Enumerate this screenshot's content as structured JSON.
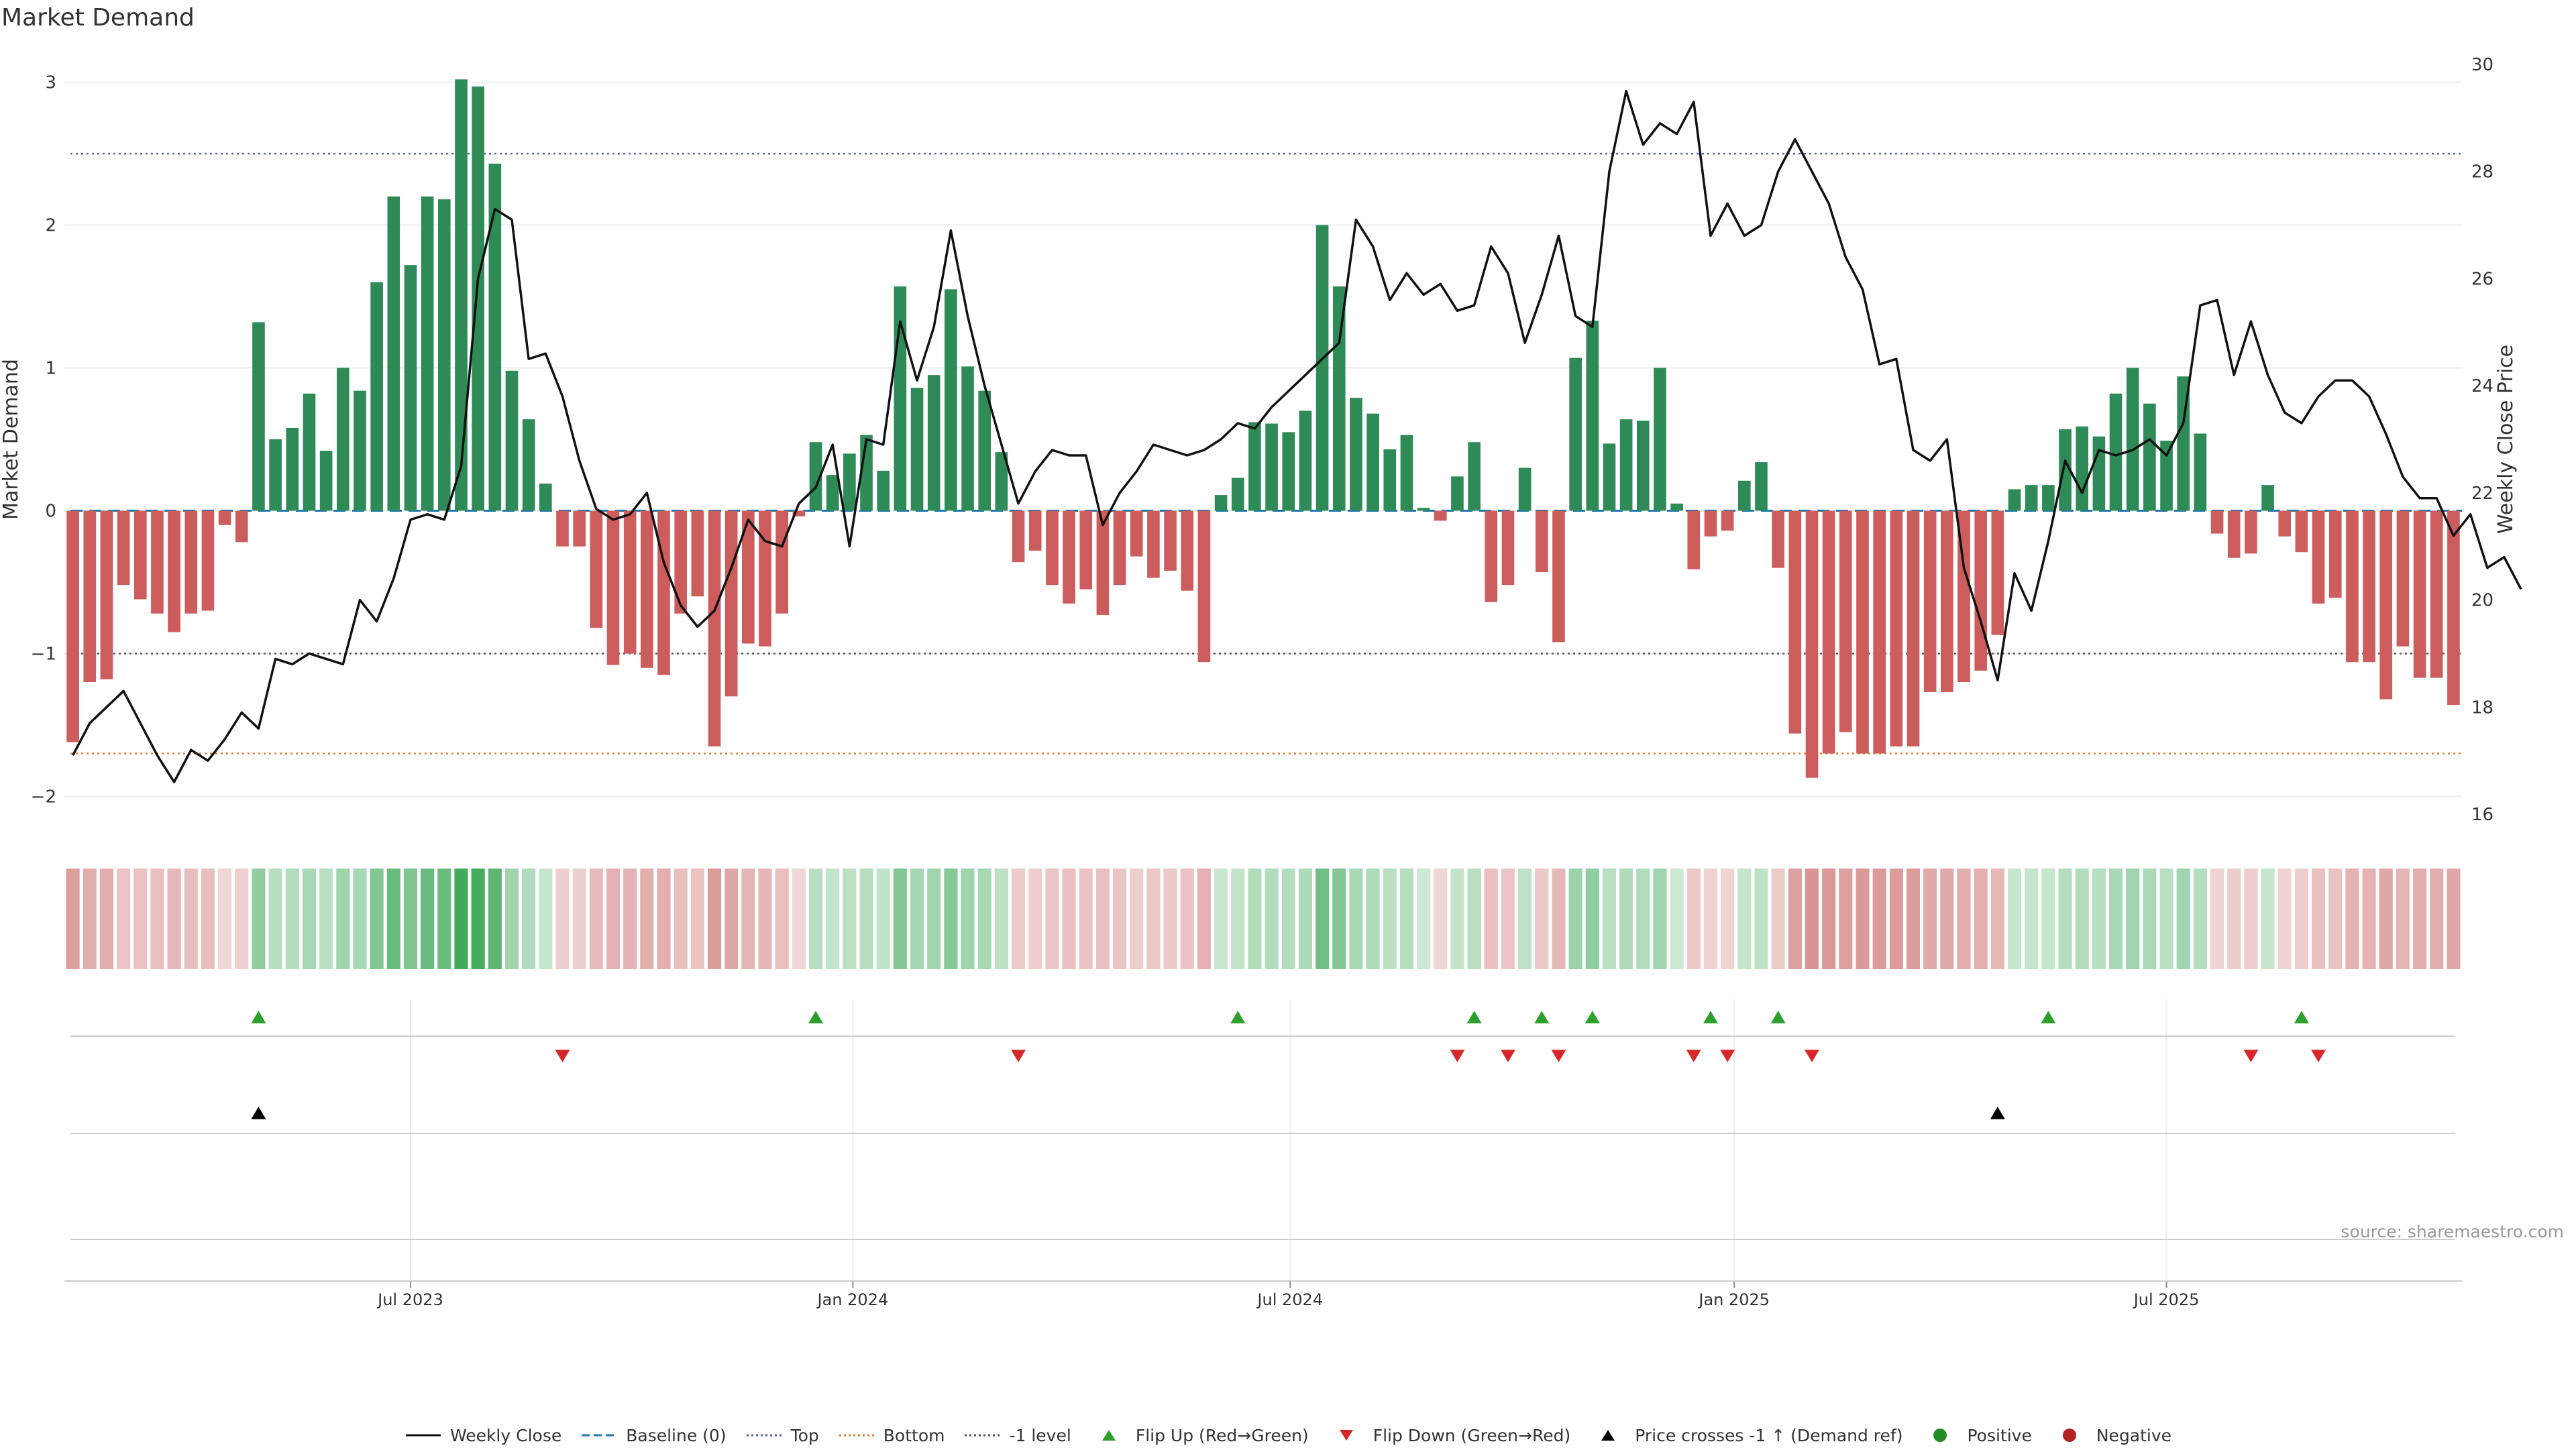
{
  "title": "Market Demand",
  "source": "source: sharemaestro.com",
  "colors": {
    "positive_bar": "#2e8b57",
    "negative_bar": "#cd5c5c",
    "line": "#111111",
    "baseline": "#1f77b4",
    "top": "#5b5bb0",
    "bottom": "#e08030",
    "minus1": "#555555",
    "flip_up": "#2ca02c",
    "flip_down": "#d62728",
    "price_cross": "#000000",
    "positive_dot": "#228b22",
    "negative_dot": "#b22222"
  },
  "legend": [
    {
      "label": "Weekly Close",
      "icon": "line-solid",
      "color": "#111111"
    },
    {
      "label": "Baseline (0)",
      "icon": "line-dash",
      "color": "#1f77b4"
    },
    {
      "label": "Top",
      "icon": "line-dot",
      "color": "#5b5bb0"
    },
    {
      "label": "Bottom",
      "icon": "line-dot",
      "color": "#e08030"
    },
    {
      "label": "-1 level",
      "icon": "line-dot",
      "color": "#555555"
    },
    {
      "label": "Flip Up (Red→Green)",
      "icon": "triangle-up",
      "color": "#2ca02c"
    },
    {
      "label": "Flip Down (Green→Red)",
      "icon": "triangle-down",
      "color": "#d62728"
    },
    {
      "label": "Price crosses -1 ↑ (Demand ref)",
      "icon": "triangle-up",
      "color": "#000000"
    },
    {
      "label": "Positive",
      "icon": "circle",
      "color": "#228b22"
    },
    {
      "label": "Negative",
      "icon": "circle",
      "color": "#b22222"
    }
  ],
  "chart_data": {
    "type": "bar",
    "title": "Market Demand",
    "ylabel": "Market Demand",
    "y2label": "Weekly Close Price",
    "ylim": [
      -2.2,
      3.2
    ],
    "y2lim": [
      15.8,
      30.2
    ],
    "yticks": [
      -2,
      -1,
      0,
      1,
      2,
      3
    ],
    "yticklabels": [
      "−2",
      "−1",
      "0",
      "1",
      "2",
      "3"
    ],
    "y2ticks": [
      16,
      18,
      20,
      22,
      24,
      26,
      28,
      30
    ],
    "y2ticklabels": [
      "16",
      "18",
      "20",
      "22",
      "24",
      "26",
      "28",
      "30"
    ],
    "x_date_ticks": [
      {
        "label": "Jul 2023",
        "week": 20.5
      },
      {
        "label": "Jan 2024",
        "week": 46.7
      },
      {
        "label": "Jul 2024",
        "week": 72.6
      },
      {
        "label": "Jan 2025",
        "week": 98.9
      },
      {
        "label": "Jul 2025",
        "week": 124.5
      }
    ],
    "reference_lines": {
      "top": 2.5,
      "bottom": -1.7,
      "minus_one": -1,
      "baseline": 0
    },
    "demand": [
      -1.62,
      -1.2,
      -1.18,
      -0.52,
      -0.62,
      -0.72,
      -0.85,
      -0.72,
      -0.7,
      -0.1,
      -0.22,
      1.32,
      0.5,
      0.58,
      0.82,
      0.42,
      1.0,
      0.84,
      1.6,
      2.2,
      1.72,
      2.2,
      2.18,
      3.02,
      2.97,
      2.43,
      0.98,
      0.64,
      0.19,
      -0.25,
      -0.25,
      -0.82,
      -1.08,
      -1.0,
      -1.1,
      -1.15,
      -0.72,
      -0.6,
      -1.65,
      -1.3,
      -0.93,
      -0.95,
      -0.72,
      -0.04,
      0.48,
      0.25,
      0.4,
      0.53,
      0.28,
      1.57,
      0.86,
      0.95,
      1.55,
      1.01,
      0.84,
      0.41,
      -0.36,
      -0.28,
      -0.52,
      -0.65,
      -0.55,
      -0.73,
      -0.52,
      -0.32,
      -0.47,
      -0.42,
      -0.56,
      -1.06,
      0.11,
      0.23,
      0.62,
      0.61,
      0.55,
      0.7,
      2.0,
      1.57,
      0.79,
      0.68,
      0.43,
      0.53,
      0.02,
      -0.07,
      0.24,
      0.48,
      -0.64,
      -0.52,
      0.3,
      -0.43,
      -0.92,
      1.07,
      1.33,
      0.47,
      0.64,
      0.63,
      1.0,
      0.05,
      -0.41,
      -0.18,
      -0.14,
      0.21,
      0.34,
      -0.4,
      -1.56,
      -1.87,
      -1.7,
      -1.55,
      -1.7,
      -1.7,
      -1.65,
      -1.65,
      -1.27,
      -1.27,
      -1.2,
      -1.12,
      -0.87,
      0.15,
      0.18,
      0.18,
      0.57,
      0.59,
      0.52,
      0.82,
      1.0,
      0.75,
      0.49,
      0.94,
      0.54,
      -0.16,
      -0.33,
      -0.3,
      0.18,
      -0.18,
      -0.29,
      -0.65,
      -0.61,
      -1.06,
      -1.06,
      -1.32,
      -0.95,
      -1.17,
      -1.17,
      -1.36
    ],
    "close_y2_start": 17.1,
    "close": [
      17.1,
      17.7,
      18.0,
      18.3,
      17.7,
      17.1,
      16.6,
      17.2,
      17.0,
      17.4,
      17.9,
      17.6,
      18.9,
      18.8,
      19.0,
      18.9,
      18.8,
      20.0,
      19.6,
      20.4,
      21.5,
      21.6,
      21.5,
      22.5,
      26.0,
      27.3,
      27.1,
      24.5,
      24.6,
      23.8,
      22.6,
      21.7,
      21.5,
      21.6,
      22.0,
      20.7,
      19.9,
      19.5,
      19.8,
      20.6,
      21.5,
      21.1,
      21.0,
      21.8,
      22.1,
      22.9,
      21.0,
      23.0,
      22.9,
      25.2,
      24.1,
      25.1,
      26.9,
      25.3,
      24.0,
      22.9,
      21.8,
      22.4,
      22.8,
      22.7,
      22.7,
      21.4,
      22.0,
      22.4,
      22.9,
      22.8,
      22.7,
      22.8,
      23.0,
      23.3,
      23.2,
      23.6,
      23.9,
      24.2,
      24.5,
      24.8,
      27.1,
      26.6,
      25.6,
      26.1,
      25.7,
      25.9,
      25.4,
      25.5,
      26.6,
      26.1,
      24.8,
      25.7,
      26.8,
      25.3,
      25.1,
      28.0,
      29.5,
      28.5,
      28.9,
      28.7,
      29.3,
      26.8,
      27.4,
      26.8,
      27.0,
      28.0,
      28.6,
      28.0,
      27.4,
      26.4,
      25.8,
      24.4,
      24.5,
      22.8,
      22.6,
      23.0,
      20.6,
      19.6,
      18.5,
      20.5,
      19.8,
      21.1,
      22.6,
      22.0,
      22.8,
      22.7,
      22.8,
      23.0,
      22.7,
      23.3,
      25.5,
      25.6,
      24.2,
      25.2,
      24.2,
      23.5,
      23.3,
      23.8,
      24.1,
      24.1,
      23.8,
      23.1,
      22.3,
      21.9,
      21.9,
      21.2,
      21.6,
      20.6,
      20.8,
      20.2
    ],
    "flip_up_weeks": [
      11,
      44,
      69,
      83,
      87,
      90,
      97,
      101,
      117,
      132
    ],
    "flip_down_weeks": [
      29,
      56,
      82,
      85,
      88,
      96,
      98,
      103,
      129,
      133
    ],
    "price_cross_weeks": [
      11,
      114
    ]
  }
}
